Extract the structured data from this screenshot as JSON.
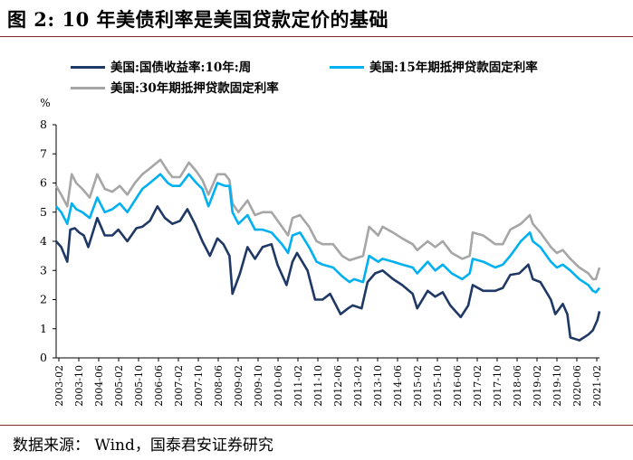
{
  "figure": {
    "title": "图 2:  10 年美债利率是美国贷款定价的基础",
    "source": "数据来源：  Wind，国泰君安证券研究"
  },
  "chart_data": {
    "type": "line",
    "unit_label": "%",
    "ylim": [
      0,
      8
    ],
    "yticks": [
      0,
      1,
      2,
      3,
      4,
      5,
      6,
      7,
      8
    ],
    "xlim": [
      2003.08,
      2021.17
    ],
    "x_tick_labels": [
      "2003-02",
      "2003-10",
      "2004-06",
      "2005-02",
      "2005-10",
      "2006-06",
      "2007-02",
      "2007-10",
      "2008-06",
      "2009-02",
      "2009-10",
      "2010-06",
      "2011-02",
      "2011-10",
      "2012-06",
      "2013-02",
      "2013-10",
      "2014-06",
      "2015-02",
      "2015-10",
      "2016-06",
      "2017-02",
      "2017-10",
      "2018-06",
      "2019-02",
      "2019-10",
      "2020-06",
      "2021-02"
    ],
    "legend": [
      {
        "label": "美国:国债收益率:10年:周",
        "color": "#1f3864"
      },
      {
        "label": "美国:15年期抵押贷款固定利率",
        "color": "#00b0f0"
      },
      {
        "label": "美国:30年期抵押贷款固定利率",
        "color": "#a6a6a6"
      }
    ],
    "series": [
      {
        "name": "美国:国债收益率:10年:周",
        "color": "#1f3864",
        "points": [
          [
            2003.08,
            4.0
          ],
          [
            2003.25,
            3.8
          ],
          [
            2003.45,
            3.3
          ],
          [
            2003.55,
            4.4
          ],
          [
            2003.7,
            4.45
          ],
          [
            2003.85,
            4.3
          ],
          [
            2004.0,
            4.2
          ],
          [
            2004.15,
            3.8
          ],
          [
            2004.45,
            4.8
          ],
          [
            2004.7,
            4.2
          ],
          [
            2004.95,
            4.2
          ],
          [
            2005.15,
            4.4
          ],
          [
            2005.45,
            4.0
          ],
          [
            2005.75,
            4.45
          ],
          [
            2005.95,
            4.5
          ],
          [
            2006.2,
            4.7
          ],
          [
            2006.45,
            5.2
          ],
          [
            2006.7,
            4.8
          ],
          [
            2006.95,
            4.6
          ],
          [
            2007.2,
            4.7
          ],
          [
            2007.45,
            5.1
          ],
          [
            2007.7,
            4.6
          ],
          [
            2007.95,
            4.0
          ],
          [
            2008.2,
            3.5
          ],
          [
            2008.45,
            4.1
          ],
          [
            2008.65,
            3.9
          ],
          [
            2008.85,
            3.5
          ],
          [
            2008.95,
            2.2
          ],
          [
            2009.2,
            2.9
          ],
          [
            2009.45,
            3.8
          ],
          [
            2009.7,
            3.4
          ],
          [
            2009.95,
            3.8
          ],
          [
            2010.25,
            3.9
          ],
          [
            2010.45,
            3.2
          ],
          [
            2010.75,
            2.5
          ],
          [
            2010.95,
            3.3
          ],
          [
            2011.1,
            3.6
          ],
          [
            2011.45,
            3.0
          ],
          [
            2011.7,
            2.0
          ],
          [
            2011.95,
            2.0
          ],
          [
            2012.2,
            2.2
          ],
          [
            2012.55,
            1.5
          ],
          [
            2012.8,
            1.7
          ],
          [
            2012.95,
            1.8
          ],
          [
            2013.25,
            1.7
          ],
          [
            2013.45,
            2.6
          ],
          [
            2013.7,
            2.9
          ],
          [
            2013.95,
            3.0
          ],
          [
            2014.3,
            2.7
          ],
          [
            2014.6,
            2.5
          ],
          [
            2014.95,
            2.2
          ],
          [
            2015.1,
            1.7
          ],
          [
            2015.45,
            2.3
          ],
          [
            2015.7,
            2.1
          ],
          [
            2015.95,
            2.25
          ],
          [
            2016.2,
            1.8
          ],
          [
            2016.55,
            1.4
          ],
          [
            2016.8,
            1.8
          ],
          [
            2016.95,
            2.5
          ],
          [
            2017.3,
            2.3
          ],
          [
            2017.7,
            2.3
          ],
          [
            2017.95,
            2.4
          ],
          [
            2018.2,
            2.85
          ],
          [
            2018.5,
            2.9
          ],
          [
            2018.8,
            3.2
          ],
          [
            2018.95,
            2.7
          ],
          [
            2019.2,
            2.6
          ],
          [
            2019.55,
            2.0
          ],
          [
            2019.7,
            1.5
          ],
          [
            2019.95,
            1.85
          ],
          [
            2020.1,
            1.5
          ],
          [
            2020.2,
            0.7
          ],
          [
            2020.5,
            0.6
          ],
          [
            2020.8,
            0.8
          ],
          [
            2020.95,
            0.95
          ],
          [
            2021.1,
            1.3
          ],
          [
            2021.17,
            1.6
          ]
        ]
      },
      {
        "name": "美国:15年期抵押贷款固定利率",
        "color": "#00b0f0",
        "points": [
          [
            2003.08,
            5.2
          ],
          [
            2003.25,
            5.0
          ],
          [
            2003.45,
            4.6
          ],
          [
            2003.6,
            5.3
          ],
          [
            2003.75,
            5.1
          ],
          [
            2003.95,
            5.0
          ],
          [
            2004.2,
            4.8
          ],
          [
            2004.45,
            5.5
          ],
          [
            2004.7,
            5.0
          ],
          [
            2004.95,
            5.1
          ],
          [
            2005.2,
            5.3
          ],
          [
            2005.45,
            5.0
          ],
          [
            2005.7,
            5.4
          ],
          [
            2005.95,
            5.8
          ],
          [
            2006.2,
            6.0
          ],
          [
            2006.55,
            6.3
          ],
          [
            2006.8,
            6.0
          ],
          [
            2006.95,
            5.9
          ],
          [
            2007.2,
            5.9
          ],
          [
            2007.5,
            6.3
          ],
          [
            2007.75,
            6.0
          ],
          [
            2007.95,
            5.8
          ],
          [
            2008.15,
            5.2
          ],
          [
            2008.45,
            6.0
          ],
          [
            2008.7,
            5.9
          ],
          [
            2008.85,
            5.9
          ],
          [
            2008.95,
            5.0
          ],
          [
            2009.15,
            4.6
          ],
          [
            2009.45,
            4.9
          ],
          [
            2009.7,
            4.4
          ],
          [
            2009.95,
            4.4
          ],
          [
            2010.25,
            4.3
          ],
          [
            2010.6,
            3.9
          ],
          [
            2010.8,
            3.6
          ],
          [
            2010.95,
            4.2
          ],
          [
            2011.2,
            4.3
          ],
          [
            2011.5,
            3.8
          ],
          [
            2011.75,
            3.3
          ],
          [
            2011.95,
            3.2
          ],
          [
            2012.3,
            3.1
          ],
          [
            2012.6,
            2.8
          ],
          [
            2012.85,
            2.6
          ],
          [
            2013.0,
            2.7
          ],
          [
            2013.3,
            2.6
          ],
          [
            2013.5,
            3.5
          ],
          [
            2013.8,
            3.3
          ],
          [
            2013.95,
            3.4
          ],
          [
            2014.3,
            3.3
          ],
          [
            2014.6,
            3.2
          ],
          [
            2014.95,
            3.1
          ],
          [
            2015.1,
            2.9
          ],
          [
            2015.45,
            3.3
          ],
          [
            2015.7,
            3.0
          ],
          [
            2015.95,
            3.2
          ],
          [
            2016.25,
            2.9
          ],
          [
            2016.6,
            2.7
          ],
          [
            2016.85,
            2.9
          ],
          [
            2016.95,
            3.4
          ],
          [
            2017.3,
            3.3
          ],
          [
            2017.7,
            3.1
          ],
          [
            2017.95,
            3.2
          ],
          [
            2018.2,
            3.5
          ],
          [
            2018.55,
            4.0
          ],
          [
            2018.85,
            4.3
          ],
          [
            2018.95,
            4.0
          ],
          [
            2019.2,
            3.8
          ],
          [
            2019.55,
            3.3
          ],
          [
            2019.75,
            3.1
          ],
          [
            2019.95,
            3.2
          ],
          [
            2020.2,
            3.0
          ],
          [
            2020.5,
            2.7
          ],
          [
            2020.8,
            2.5
          ],
          [
            2020.95,
            2.3
          ],
          [
            2021.05,
            2.25
          ],
          [
            2021.17,
            2.4
          ]
        ]
      },
      {
        "name": "美国:30年期抵押贷款固定利率",
        "color": "#a6a6a6",
        "points": [
          [
            2003.08,
            5.9
          ],
          [
            2003.25,
            5.6
          ],
          [
            2003.45,
            5.2
          ],
          [
            2003.6,
            6.3
          ],
          [
            2003.75,
            6.0
          ],
          [
            2003.95,
            5.8
          ],
          [
            2004.2,
            5.5
          ],
          [
            2004.45,
            6.3
          ],
          [
            2004.7,
            5.8
          ],
          [
            2004.95,
            5.7
          ],
          [
            2005.2,
            5.9
          ],
          [
            2005.45,
            5.6
          ],
          [
            2005.7,
            6.0
          ],
          [
            2005.95,
            6.3
          ],
          [
            2006.2,
            6.5
          ],
          [
            2006.55,
            6.8
          ],
          [
            2006.8,
            6.4
          ],
          [
            2006.95,
            6.2
          ],
          [
            2007.2,
            6.2
          ],
          [
            2007.5,
            6.7
          ],
          [
            2007.75,
            6.4
          ],
          [
            2007.95,
            6.1
          ],
          [
            2008.15,
            5.6
          ],
          [
            2008.45,
            6.3
          ],
          [
            2008.7,
            6.3
          ],
          [
            2008.85,
            6.1
          ],
          [
            2008.95,
            5.3
          ],
          [
            2009.15,
            5.0
          ],
          [
            2009.45,
            5.4
          ],
          [
            2009.7,
            4.9
          ],
          [
            2009.95,
            5.0
          ],
          [
            2010.25,
            5.0
          ],
          [
            2010.6,
            4.5
          ],
          [
            2010.8,
            4.2
          ],
          [
            2010.95,
            4.8
          ],
          [
            2011.2,
            4.9
          ],
          [
            2011.5,
            4.5
          ],
          [
            2011.75,
            4.0
          ],
          [
            2011.95,
            3.9
          ],
          [
            2012.3,
            3.9
          ],
          [
            2012.6,
            3.5
          ],
          [
            2012.85,
            3.35
          ],
          [
            2013.0,
            3.4
          ],
          [
            2013.3,
            3.5
          ],
          [
            2013.5,
            4.5
          ],
          [
            2013.8,
            4.2
          ],
          [
            2013.95,
            4.5
          ],
          [
            2014.3,
            4.3
          ],
          [
            2014.6,
            4.1
          ],
          [
            2014.95,
            3.9
          ],
          [
            2015.1,
            3.7
          ],
          [
            2015.45,
            4.0
          ],
          [
            2015.7,
            3.8
          ],
          [
            2015.95,
            4.0
          ],
          [
            2016.25,
            3.6
          ],
          [
            2016.6,
            3.4
          ],
          [
            2016.85,
            3.5
          ],
          [
            2016.95,
            4.3
          ],
          [
            2017.3,
            4.2
          ],
          [
            2017.7,
            3.9
          ],
          [
            2017.95,
            3.9
          ],
          [
            2018.2,
            4.4
          ],
          [
            2018.55,
            4.6
          ],
          [
            2018.85,
            4.9
          ],
          [
            2018.95,
            4.6
          ],
          [
            2019.2,
            4.3
          ],
          [
            2019.55,
            3.8
          ],
          [
            2019.75,
            3.6
          ],
          [
            2019.95,
            3.7
          ],
          [
            2020.2,
            3.4
          ],
          [
            2020.5,
            3.1
          ],
          [
            2020.8,
            2.9
          ],
          [
            2020.95,
            2.7
          ],
          [
            2021.05,
            2.7
          ],
          [
            2021.17,
            3.1
          ]
        ]
      }
    ]
  }
}
